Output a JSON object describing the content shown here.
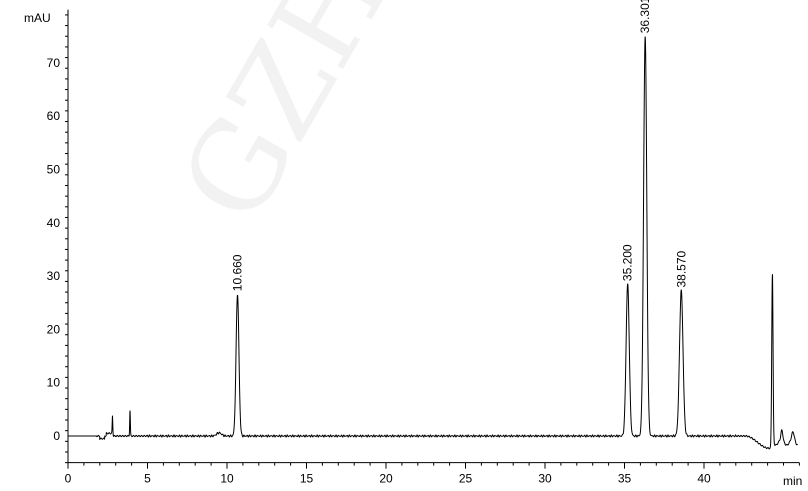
{
  "watermark": "GZH",
  "chart_data": {
    "type": "line",
    "title": "",
    "xlabel": "min",
    "ylabel": "mAU",
    "xlim": [
      0,
      46
    ],
    "ylim": [
      -5,
      80
    ],
    "x_ticks": [
      0,
      5,
      10,
      15,
      20,
      25,
      30,
      35,
      40
    ],
    "x_minor_step": 1,
    "y_ticks": [
      0,
      10,
      20,
      30,
      40,
      50,
      60,
      70
    ],
    "y_minor_step": 2,
    "grid": false,
    "line_color": "#000000",
    "peaks": [
      {
        "label": "10.660",
        "rt": 10.66,
        "height": 26.6,
        "sigma": 0.09,
        "labeled": true
      },
      {
        "label": "35.200",
        "rt": 35.2,
        "height": 28.5,
        "sigma": 0.1,
        "labeled": true
      },
      {
        "label": "36.301",
        "rt": 36.301,
        "height": 75.0,
        "sigma": 0.1,
        "labeled": true
      },
      {
        "label": "38.570",
        "rt": 38.57,
        "height": 27.3,
        "sigma": 0.11,
        "labeled": true
      },
      {
        "label": "",
        "rt": 2.8,
        "height": 3.3,
        "sigma": 0.02,
        "labeled": false
      },
      {
        "label": "",
        "rt": 3.9,
        "height": 4.8,
        "sigma": 0.02,
        "labeled": false
      },
      {
        "label": "",
        "rt": 9.5,
        "height": 0.6,
        "sigma": 0.15,
        "labeled": false
      },
      {
        "label": "",
        "rt": 44.3,
        "height": 32.5,
        "sigma": 0.04,
        "labeled": false
      },
      {
        "label": "",
        "rt": 44.9,
        "height": 1.8,
        "sigma": 0.06,
        "labeled": false
      },
      {
        "label": "",
        "rt": 45.6,
        "height": 1.5,
        "sigma": 0.08,
        "labeled": false
      }
    ],
    "baseline_dip": {
      "start": 42.6,
      "min_at": 44.1,
      "depth": -2.3
    }
  }
}
